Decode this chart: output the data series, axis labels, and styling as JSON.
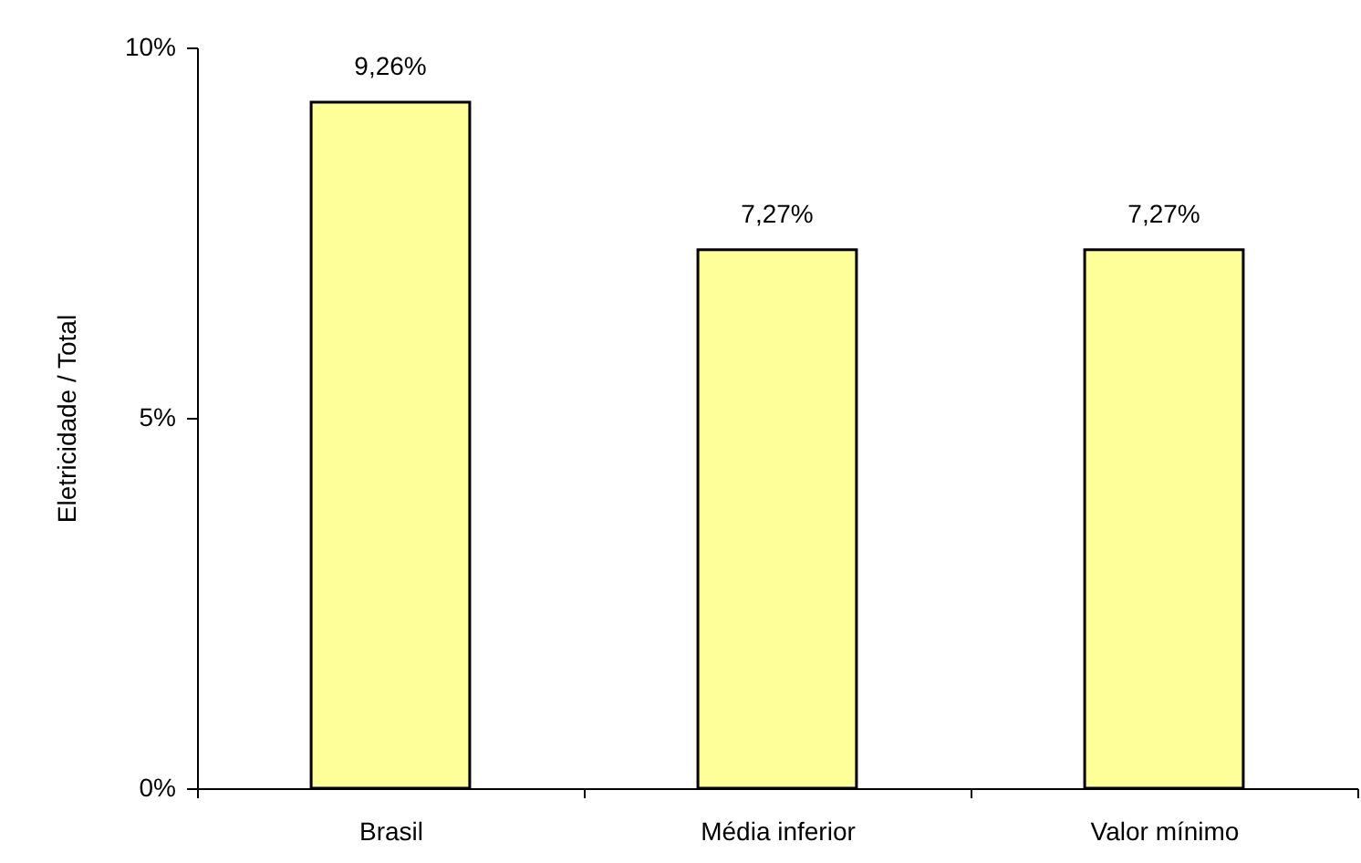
{
  "chart_data": {
    "type": "bar",
    "ylabel": "Eletricidade / Total",
    "categories": [
      "Brasil",
      "Média inferior",
      "Valor mínimo"
    ],
    "values": [
      9.26,
      7.27,
      7.27
    ],
    "value_labels": [
      "9,26%",
      "7,27%",
      "7,27%"
    ],
    "color": "#ffff99",
    "ylim": [
      0,
      10
    ],
    "yticks": [
      {
        "value": 0,
        "label": "0%"
      },
      {
        "value": 5,
        "label": "5%"
      },
      {
        "value": 10,
        "label": "10%"
      }
    ]
  }
}
